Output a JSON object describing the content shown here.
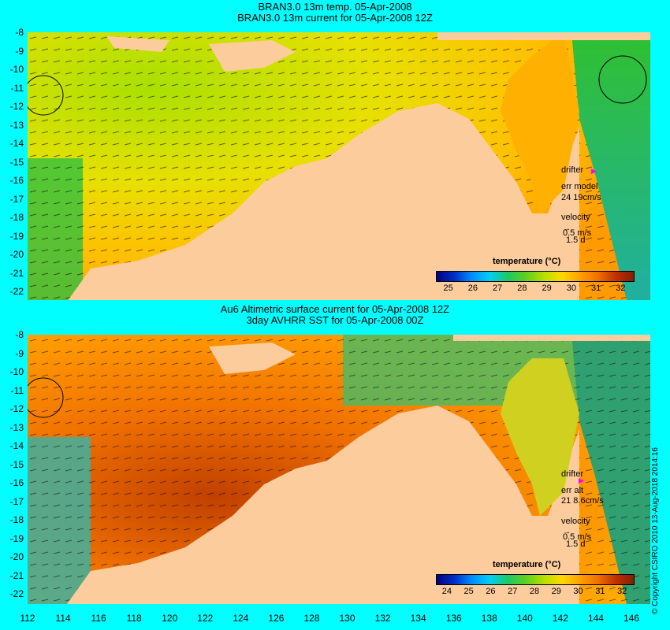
{
  "top_panel": {
    "title_line1": "BRAN3.0 13m temp. 05-Apr-2008",
    "title_line2": "BRAN3.0 13m current for 05-Apr-2008 12Z",
    "drifter_label": "drifter",
    "err_label": "err model",
    "err_value": "24 19cm/s",
    "velocity_label": "velocity",
    "velocity_scale": "0.5 m/s",
    "velocity_time": "1.5 d",
    "colorbar_title": "temperature (°C)",
    "colorbar_ticks": [
      "25",
      "26",
      "27",
      "28",
      "29",
      "30",
      "31",
      "32"
    ]
  },
  "bottom_panel": {
    "title_line1": "Au6 Altimetric surface current for 05-Apr-2008 12Z",
    "title_line2": "3day AVHRR SST for 05-Apr-2008 00Z",
    "drifter_label": "drifter",
    "err_label": "err alt",
    "err_value": "21 8.6cm/s",
    "velocity_label": "velocity",
    "velocity_scale": "0.5 m/s",
    "velocity_time": "1.5 d",
    "colorbar_title": "temperature (°C)",
    "colorbar_ticks": [
      "24",
      "25",
      "26",
      "27",
      "28",
      "29",
      "30",
      "31",
      "32"
    ]
  },
  "axes": {
    "lat_ticks": [
      "-8",
      "-9",
      "-10",
      "-11",
      "-12",
      "-13",
      "-14",
      "-15",
      "-16",
      "-17",
      "-18",
      "-19",
      "-20",
      "-21",
      "-22"
    ],
    "lon_ticks": [
      "112",
      "114",
      "116",
      "118",
      "120",
      "122",
      "124",
      "126",
      "128",
      "130",
      "132",
      "134",
      "136",
      "138",
      "140",
      "142",
      "144",
      "146"
    ]
  },
  "copyright": "© Copyright CSIRO 2010   13-Aug-2018 2014:16",
  "colors": {
    "background": "#00ffff",
    "land": "#fdcc9c",
    "colormap": [
      "#000080",
      "#0030c8",
      "#0090ff",
      "#00d0f0",
      "#20c860",
      "#60d020",
      "#b8e000",
      "#ffd800",
      "#ffa000",
      "#f07000",
      "#c03000",
      "#802000"
    ]
  }
}
